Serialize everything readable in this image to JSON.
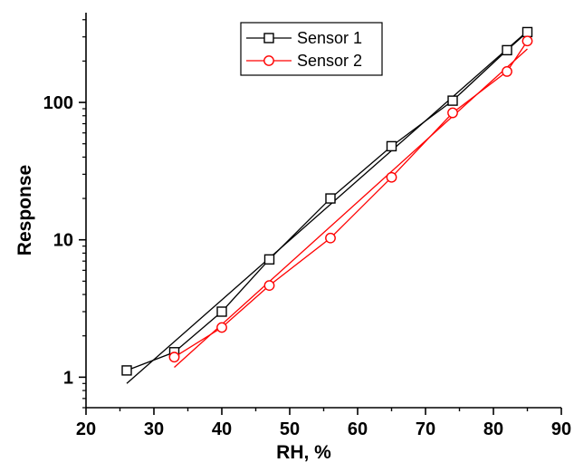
{
  "chart_data": {
    "type": "scatter",
    "title": "",
    "xlabel": "RH, %",
    "ylabel": "Response",
    "xlim": [
      20,
      90
    ],
    "ylim": [
      0.6,
      450
    ],
    "y_scale": "log",
    "x_ticks": [
      20,
      30,
      40,
      50,
      60,
      70,
      80,
      90
    ],
    "x_tick_labels": [
      "20",
      "30",
      "40",
      "50",
      "60",
      "70",
      "80",
      "90"
    ],
    "y_ticks": [
      1,
      10,
      100
    ],
    "y_tick_labels": [
      "1",
      "10",
      "100"
    ],
    "grid": false,
    "legend": "top-center",
    "series": [
      {
        "name": "Sensor 1",
        "color": "#000000",
        "marker": "square",
        "x": [
          26,
          33,
          40,
          47,
          56,
          65,
          74,
          82,
          85
        ],
        "y": [
          1.12,
          1.52,
          3.0,
          7.2,
          20.0,
          48.0,
          103.0,
          240.0,
          325.0
        ],
        "fit_line": {
          "x": [
            26,
            85
          ],
          "y": [
            0.9,
            330.0
          ]
        }
      },
      {
        "name": "Sensor 2",
        "color": "#ff0000",
        "marker": "circle",
        "x": [
          33,
          40,
          47,
          56,
          65,
          74,
          82,
          85
        ],
        "y": [
          1.4,
          2.3,
          4.65,
          10.3,
          28.5,
          84.0,
          168.0,
          280.0
        ],
        "fit_line": {
          "x": [
            33,
            85
          ],
          "y": [
            1.18,
            245.0
          ]
        }
      }
    ]
  }
}
